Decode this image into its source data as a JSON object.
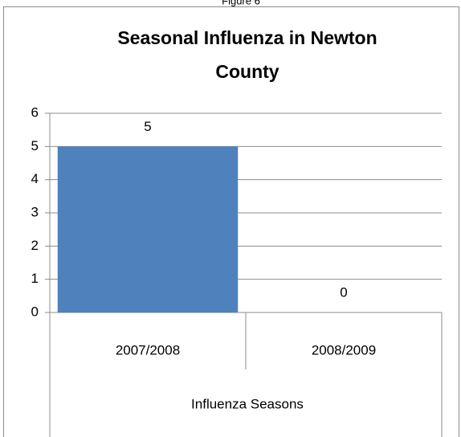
{
  "figure_label": "Figure 6",
  "chart_data": {
    "type": "bar",
    "title_lines": [
      "Seasonal Influenza in Newton",
      "County"
    ],
    "categories": [
      "2007/2008",
      "2008/2009"
    ],
    "values": [
      5,
      0
    ],
    "color": "#4f81bd",
    "x_label": "Influenza Seasons",
    "ylim": [
      0,
      6
    ],
    "yticks": [
      0,
      1,
      2,
      3,
      4,
      5,
      6
    ],
    "grid": true
  }
}
